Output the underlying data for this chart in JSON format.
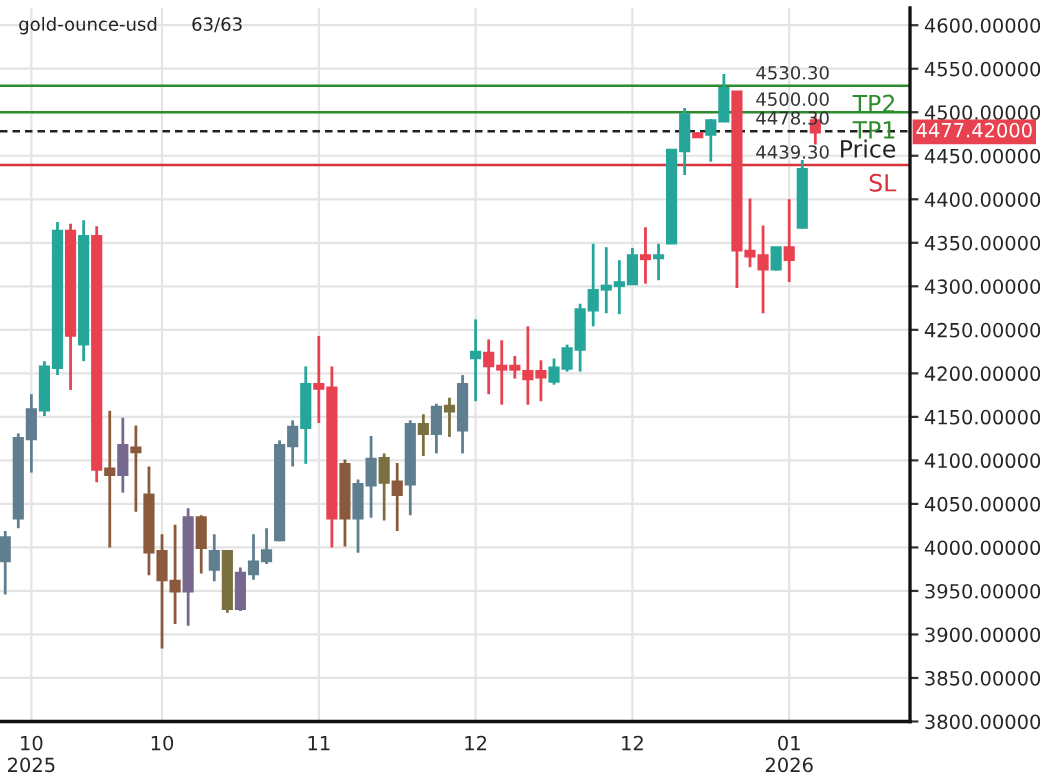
{
  "chart_data": {
    "type": "candlestick",
    "categories": [
      null,
      null,
      "10\n2025",
      null,
      null,
      null,
      null,
      null,
      null,
      null,
      null,
      null,
      "10",
      null,
      null,
      null,
      null,
      null,
      null,
      null,
      null,
      null,
      null,
      null,
      "11",
      null,
      null,
      null,
      null,
      null,
      null,
      null,
      null,
      null,
      null,
      null,
      "12",
      null,
      null,
      null,
      null,
      null,
      null,
      null,
      null,
      null,
      null,
      null,
      "12",
      null,
      null,
      null,
      null,
      null,
      null,
      null,
      null,
      null,
      null,
      null,
      "01\n2026",
      null,
      null
    ],
    "ohlc": [
      [
        3985,
        4019,
        3946,
        4011
      ],
      [
        4034,
        4131,
        4022,
        4125
      ],
      [
        4125,
        4176,
        4086,
        4158
      ],
      [
        4158,
        4214,
        4151,
        4207
      ],
      [
        4207,
        4374,
        4198,
        4363
      ],
      [
        4363,
        4372,
        4181,
        4244
      ],
      [
        4234,
        4376,
        4214,
        4357
      ],
      [
        4357,
        4369,
        4075,
        4090
      ],
      [
        4090,
        4157,
        4000,
        4084
      ],
      [
        4084,
        4149,
        4063,
        4117
      ],
      [
        4114,
        4140,
        4041,
        4110
      ],
      [
        4060,
        4093,
        3968,
        3995
      ],
      [
        3995,
        4015,
        3884,
        3963
      ],
      [
        3961,
        4026,
        3912,
        3950
      ],
      [
        3950,
        4045,
        3910,
        4034
      ],
      [
        4034,
        4037,
        3970,
        4000
      ],
      [
        3975,
        4015,
        3961,
        3995
      ],
      [
        3995,
        3996,
        3925,
        3930
      ],
      [
        3930,
        3977,
        3927,
        3970
      ],
      [
        3970,
        4015,
        3963,
        3983
      ],
      [
        3985,
        4022,
        3981,
        3996
      ],
      [
        4009,
        4123,
        4007,
        4117
      ],
      [
        4117,
        4146,
        4093,
        4138
      ],
      [
        4138,
        4208,
        4096,
        4187
      ],
      [
        4187,
        4243,
        4143,
        4183
      ],
      [
        4183,
        4208,
        4000,
        4034
      ],
      [
        4095,
        4101,
        4001,
        4034
      ],
      [
        4034,
        4078,
        3994,
        4072
      ],
      [
        4072,
        4128,
        4034,
        4101
      ],
      [
        4075,
        4108,
        4031,
        4102
      ],
      [
        4075,
        4097,
        4019,
        4061
      ],
      [
        4073,
        4146,
        4037,
        4141
      ],
      [
        4131,
        4153,
        4105,
        4141
      ],
      [
        4131,
        4165,
        4108,
        4161
      ],
      [
        4157,
        4172,
        4127,
        4162
      ],
      [
        4135,
        4198,
        4108,
        4187
      ],
      [
        4218,
        4262,
        4168,
        4224
      ],
      [
        4223,
        4239,
        4176,
        4209
      ],
      [
        4208,
        4238,
        4164,
        4205
      ],
      [
        4208,
        4220,
        4194,
        4205
      ],
      [
        4202,
        4254,
        4164,
        4194
      ],
      [
        4202,
        4215,
        4168,
        4196
      ],
      [
        4191,
        4217,
        4187,
        4206
      ],
      [
        4206,
        4233,
        4202,
        4228
      ],
      [
        4228,
        4280,
        4202,
        4273
      ],
      [
        4273,
        4349,
        4254,
        4295
      ],
      [
        4297,
        4345,
        4269,
        4300
      ],
      [
        4301,
        4330,
        4268,
        4304
      ],
      [
        4303,
        4344,
        4303,
        4335
      ],
      [
        4335,
        4368,
        4303,
        4332
      ],
      [
        4333,
        4349,
        4307,
        4335
      ],
      [
        4350,
        4456,
        4350,
        4456
      ],
      [
        4456,
        4505,
        4428,
        4497
      ],
      [
        4475,
        4477,
        4472,
        4472
      ],
      [
        4475,
        4492,
        4443,
        4490
      ],
      [
        4490,
        4544,
        4490,
        4527
      ],
      [
        4523,
        4523,
        4298,
        4342
      ],
      [
        4340,
        4401,
        4322,
        4335
      ],
      [
        4335,
        4370,
        4269,
        4320
      ],
      [
        4320,
        4345,
        4318,
        4344
      ],
      [
        4344,
        4400,
        4305,
        4331
      ],
      [
        4368,
        4445,
        4366,
        4434
      ],
      [
        4490,
        4495,
        4463,
        4477.42
      ]
    ],
    "colors": [
      "#5f7f90",
      "#5f7f90",
      "#5f7f90",
      "#26a69a",
      "#26a69a",
      "#e8414f",
      "#26a69a",
      "#e8414f",
      "#8b5a3c",
      "#76688f",
      "#8b5a3c",
      "#8b5a3c",
      "#8b5a3c",
      "#8b5a3c",
      "#76688f",
      "#8b5a3c",
      "#5f7f90",
      "#7a7040",
      "#76688f",
      "#5f7f90",
      "#5f7f90",
      "#5f7f90",
      "#5f7f90",
      "#26a69a",
      "#e8414f",
      "#e8414f",
      "#8b5a3c",
      "#5f7f90",
      "#5f7f90",
      "#7a7040",
      "#8b5a3c",
      "#5f7f90",
      "#7a7040",
      "#5f7f90",
      "#7a7040",
      "#5f7f90",
      "#26a69a",
      "#e8414f",
      "#e8414f",
      "#e8414f",
      "#e8414f",
      "#e8414f",
      "#26a69a",
      "#26a69a",
      "#26a69a",
      "#26a69a",
      "#26a69a",
      "#26a69a",
      "#26a69a",
      "#e8414f",
      "#26a69a",
      "#26a69a",
      "#26a69a",
      "#e8414f",
      "#26a69a",
      "#26a69a",
      "#e8414f",
      "#e8414f",
      "#e8414f",
      "#26a69a",
      "#e8414f",
      "#26a69a",
      "#e8414f"
    ],
    "ylim": [
      3800,
      4620
    ],
    "yticks": [
      {
        "value": 3800,
        "label": "3800.00000"
      },
      {
        "value": 3850,
        "label": "3850.00000"
      },
      {
        "value": 3900,
        "label": "3900.00000"
      },
      {
        "value": 3950,
        "label": "3950.00000"
      },
      {
        "value": 4000,
        "label": "4000.00000"
      },
      {
        "value": 4050,
        "label": "4050.00000"
      },
      {
        "value": 4100,
        "label": "4100.00000"
      },
      {
        "value": 4150,
        "label": "4150.00000"
      },
      {
        "value": 4200,
        "label": "4200.00000"
      },
      {
        "value": 4250,
        "label": "4250.00000"
      },
      {
        "value": 4300,
        "label": "4300.00000"
      },
      {
        "value": 4350,
        "label": "4350.00000"
      },
      {
        "value": 4400,
        "label": "4400.00000"
      },
      {
        "value": 4450,
        "label": "4450.00000"
      },
      {
        "value": 4500,
        "label": "4500.00000"
      },
      {
        "value": 4550,
        "label": "4550.00000"
      },
      {
        "value": 4600,
        "label": "4600.00000"
      }
    ],
    "grid": true,
    "ref_lines": [
      {
        "axis": "y",
        "value": 4530.3,
        "label": "TP2",
        "color": "#2e8b2e",
        "line_style": "solid"
      },
      {
        "axis": "y",
        "value": 4500,
        "label": "TP1",
        "color": "#2e8b2e",
        "line_style": "solid"
      },
      {
        "axis": "y",
        "value": 4478.3,
        "label": "Price",
        "color": "#222222",
        "line_style": "dashed"
      },
      {
        "axis": "y",
        "value": 4439.3,
        "label": "SL",
        "color": "#d9303a",
        "line_style": "solid"
      }
    ],
    "title": "gold-ounce-usd",
    "subtitle": "63/63",
    "annotations": [
      {
        "text": "4530.30",
        "y": 4530.3
      },
      {
        "text": "4500.00",
        "y": 4500
      },
      {
        "text": "4478.30",
        "y": 4478.3
      },
      {
        "text": "4439.30",
        "y": 4439.3
      },
      "4477.42000"
    ]
  }
}
